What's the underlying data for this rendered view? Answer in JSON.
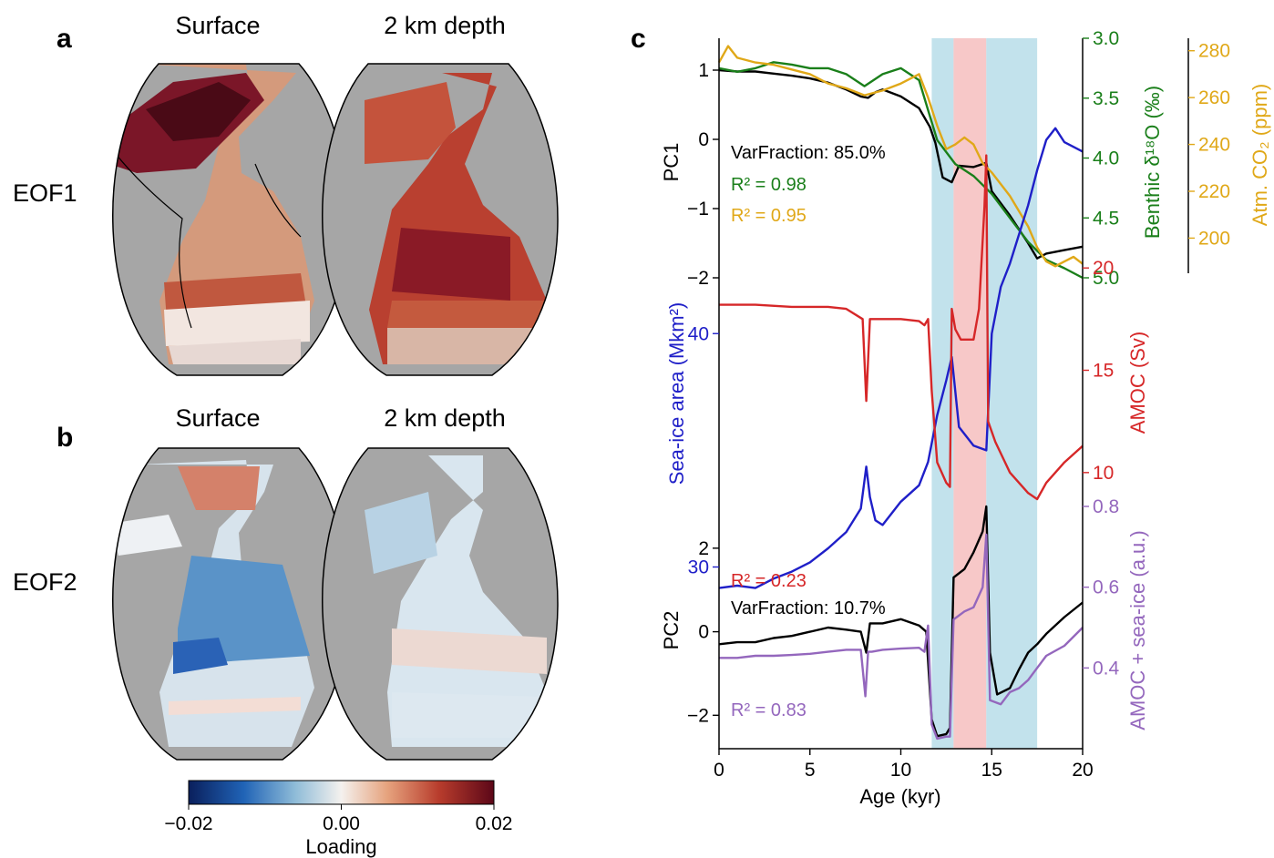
{
  "panels": {
    "a": "a",
    "b": "b",
    "c": "c"
  },
  "maps": {
    "columns": [
      "Surface",
      "2 km depth"
    ],
    "rows": [
      "EOF1",
      "EOF2"
    ],
    "land_color": "#a6a6a6"
  },
  "colorbar": {
    "label": "Loading",
    "ticks": [
      "−0.02",
      "0.00",
      "0.02"
    ],
    "range": [
      -0.02,
      0.02
    ],
    "colormap": "RdBu_r"
  },
  "colors": {
    "black": "#000000",
    "d18o": "#1a7f1a",
    "co2": "#e0a818",
    "seaice": "#1f1fc8",
    "amoc": "#d62728",
    "amoc_seaice": "#9467bd",
    "shade_blue": "#add8e6",
    "shade_red": "#f4b6b6"
  },
  "chart_data": [
    {
      "type": "line",
      "name": "PC1 panel",
      "xlabel": "Age (kyr)",
      "xlim": [
        0,
        20
      ],
      "xticks": [
        "0",
        "5",
        "10",
        "15",
        "20"
      ],
      "shaded_intervals": [
        {
          "from": 11.7,
          "to": 12.9,
          "color": "blue"
        },
        {
          "from": 12.9,
          "to": 14.7,
          "color": "red"
        },
        {
          "from": 14.7,
          "to": 17.5,
          "color": "blue"
        }
      ],
      "axes": [
        {
          "id": "pc1",
          "label": "PC1",
          "ylim": [
            -2.0,
            1.25
          ],
          "ticks": [
            "1",
            "0",
            "−1",
            "−2"
          ]
        },
        {
          "id": "d18o",
          "label": "Benthic δ¹⁸O (‰)",
          "ylim": [
            3.0,
            5.0
          ],
          "inverted": true,
          "ticks": [
            "3.0",
            "3.5",
            "4.0",
            "4.5",
            "5.0"
          ]
        },
        {
          "id": "co2",
          "label": "Atm. CO₂ (ppm)",
          "ylim": [
            185,
            290
          ],
          "ticks": [
            "280",
            "260",
            "240",
            "220",
            "200"
          ]
        }
      ],
      "annotations": [
        "VarFraction: 85.0%",
        "R² = 0.98",
        "R² = 0.95"
      ],
      "series": [
        {
          "axis": "pc1",
          "color": "black",
          "x": [
            0,
            1,
            2,
            3,
            4,
            5,
            6,
            7,
            7.8,
            8.2,
            8.6,
            9,
            10,
            11,
            11.6,
            11.9,
            12.3,
            12.8,
            13.2,
            14,
            14.7,
            15,
            16,
            17,
            17.5,
            18,
            19,
            20
          ],
          "y": [
            1.0,
            0.98,
            0.98,
            0.95,
            0.92,
            0.88,
            0.82,
            0.72,
            0.62,
            0.6,
            0.68,
            0.72,
            0.62,
            0.45,
            0.18,
            -0.05,
            -0.55,
            -0.62,
            -0.38,
            -0.4,
            -0.34,
            -0.75,
            -1.1,
            -1.5,
            -1.72,
            -1.65,
            -1.6,
            -1.55
          ]
        },
        {
          "axis": "d18o",
          "color": "d18o",
          "x": [
            0,
            1,
            2,
            3,
            4,
            5,
            6,
            7,
            8,
            9,
            10,
            11,
            11.5,
            12,
            13,
            14,
            15,
            16,
            17,
            18,
            19,
            20
          ],
          "y": [
            3.25,
            3.28,
            3.25,
            3.2,
            3.22,
            3.25,
            3.25,
            3.3,
            3.4,
            3.3,
            3.25,
            3.35,
            3.6,
            3.85,
            4.05,
            4.15,
            4.3,
            4.5,
            4.7,
            4.85,
            4.92,
            5.0
          ]
        },
        {
          "axis": "co2",
          "color": "co2",
          "x": [
            0,
            0.5,
            1,
            2,
            3,
            4,
            5,
            6,
            7,
            8,
            9,
            10,
            11,
            11.5,
            12,
            12.5,
            13,
            13.5,
            14,
            14.5,
            15,
            16,
            17,
            17.5,
            18,
            18.5,
            19,
            19.5,
            20
          ],
          "y": [
            275,
            282,
            277,
            275,
            274,
            272,
            270,
            266,
            264,
            261,
            263,
            266,
            270,
            260,
            248,
            238,
            240,
            243,
            240,
            232,
            228,
            218,
            205,
            196,
            190,
            188,
            190,
            192,
            189
          ]
        }
      ]
    },
    {
      "type": "line",
      "name": "Sea-ice and AMOC panel",
      "xlabel": "Age (kyr)",
      "xlim": [
        0,
        20
      ],
      "axes": [
        {
          "id": "seaice",
          "label": "Sea-ice area (Mkm²)",
          "ylim": [
            26,
            50
          ],
          "ticks": [
            "40",
            "30"
          ]
        },
        {
          "id": "amoc",
          "label": "AMOC (Sv)",
          "ylim": [
            7.5,
            29
          ],
          "ticks": [
            "20",
            "15",
            "10"
          ]
        }
      ],
      "series": [
        {
          "axis": "seaice",
          "color": "seaice",
          "x": [
            0,
            1,
            2,
            3,
            4,
            5,
            6,
            7,
            7.8,
            8.1,
            8.3,
            8.6,
            9,
            10,
            11,
            11.5,
            12,
            12.5,
            12.8,
            13.2,
            14,
            14.7,
            15,
            15.5,
            16,
            17,
            17.5,
            18,
            18.5,
            19,
            20
          ],
          "y": [
            29.1,
            29.2,
            29.1,
            29.5,
            29.8,
            30.2,
            30.8,
            31.5,
            32.5,
            34.3,
            33.0,
            32.0,
            31.8,
            32.8,
            33.5,
            34.5,
            36.5,
            38.0,
            39.0,
            36.0,
            35.2,
            35.0,
            40.0,
            42.0,
            43.0,
            45.5,
            47.0,
            48.3,
            48.8,
            48.2,
            47.8
          ]
        },
        {
          "axis": "amoc",
          "color": "amoc",
          "x": [
            0,
            2,
            4,
            6,
            7,
            7.9,
            8.1,
            8.3,
            9,
            10,
            11,
            11.3,
            11.5,
            11.7,
            12,
            12.5,
            12.7,
            12.8,
            13.0,
            13.3,
            14,
            14.3,
            14.6,
            14.7,
            14.8,
            15.2,
            16,
            17,
            17.5,
            18,
            19,
            20
          ],
          "y": [
            18.2,
            18.2,
            18.1,
            18.1,
            18.0,
            17.5,
            13.5,
            17.5,
            17.5,
            17.5,
            17.4,
            17.2,
            17.5,
            14.0,
            10.5,
            9.5,
            9.3,
            18.0,
            17.0,
            16.5,
            16.5,
            18.0,
            23.0,
            25.5,
            12.5,
            11.5,
            10.0,
            9.0,
            8.7,
            9.5,
            10.5,
            11.3
          ]
        }
      ]
    },
    {
      "type": "line",
      "name": "PC2 panel",
      "xlabel": "Age (kyr)",
      "xlim": [
        0,
        20
      ],
      "axes": [
        {
          "id": "pc2",
          "label": "PC2",
          "ylim": [
            -2.8,
            3.0
          ],
          "ticks": [
            "2",
            "0",
            "−2"
          ]
        },
        {
          "id": "amocsi",
          "label": "AMOC + sea-ice (a.u.)",
          "ylim": [
            0.2,
            0.8
          ],
          "ticks": [
            "0.8",
            "0.6",
            "0.4"
          ]
        }
      ],
      "annotations": [
        "R² = 0.23",
        "VarFraction: 10.7%",
        "R² = 0.83"
      ],
      "series": [
        {
          "axis": "pc2",
          "color": "black",
          "x": [
            0,
            1,
            2,
            3,
            4,
            5,
            6,
            7,
            7.8,
            8.1,
            8.3,
            9,
            10,
            11,
            11.4,
            11.7,
            12,
            12.5,
            12.7,
            12.9,
            13.5,
            14,
            14.5,
            14.7,
            14.9,
            15.3,
            16,
            16.5,
            17,
            17.5,
            18,
            19,
            20
          ],
          "y": [
            -0.3,
            -0.25,
            -0.25,
            -0.15,
            -0.1,
            0.0,
            0.1,
            0.05,
            0.0,
            -0.5,
            0.2,
            0.2,
            0.3,
            0.15,
            0.0,
            -2.1,
            -2.5,
            -2.45,
            -2.3,
            1.3,
            1.5,
            1.9,
            2.4,
            3.0,
            -0.5,
            -1.5,
            -1.35,
            -0.9,
            -0.5,
            -0.3,
            -0.05,
            0.35,
            0.7
          ]
        },
        {
          "axis": "amocsi",
          "color": "amoc_seaice",
          "x": [
            0,
            1,
            2,
            3,
            4,
            5,
            6,
            7,
            7.8,
            8.05,
            8.2,
            8.4,
            9,
            10,
            11,
            11.3,
            11.5,
            11.7,
            12,
            12.5,
            12.7,
            12.9,
            13.5,
            14,
            14.5,
            14.7,
            14.9,
            15.5,
            16,
            16.5,
            17,
            17.5,
            18,
            19,
            20
          ],
          "y": [
            0.425,
            0.425,
            0.43,
            0.43,
            0.432,
            0.435,
            0.44,
            0.445,
            0.445,
            0.33,
            0.44,
            0.44,
            0.445,
            0.448,
            0.45,
            0.44,
            0.505,
            0.26,
            0.225,
            0.23,
            0.23,
            0.52,
            0.54,
            0.55,
            0.6,
            0.73,
            0.32,
            0.31,
            0.34,
            0.35,
            0.37,
            0.4,
            0.43,
            0.455,
            0.5
          ]
        }
      ]
    }
  ]
}
